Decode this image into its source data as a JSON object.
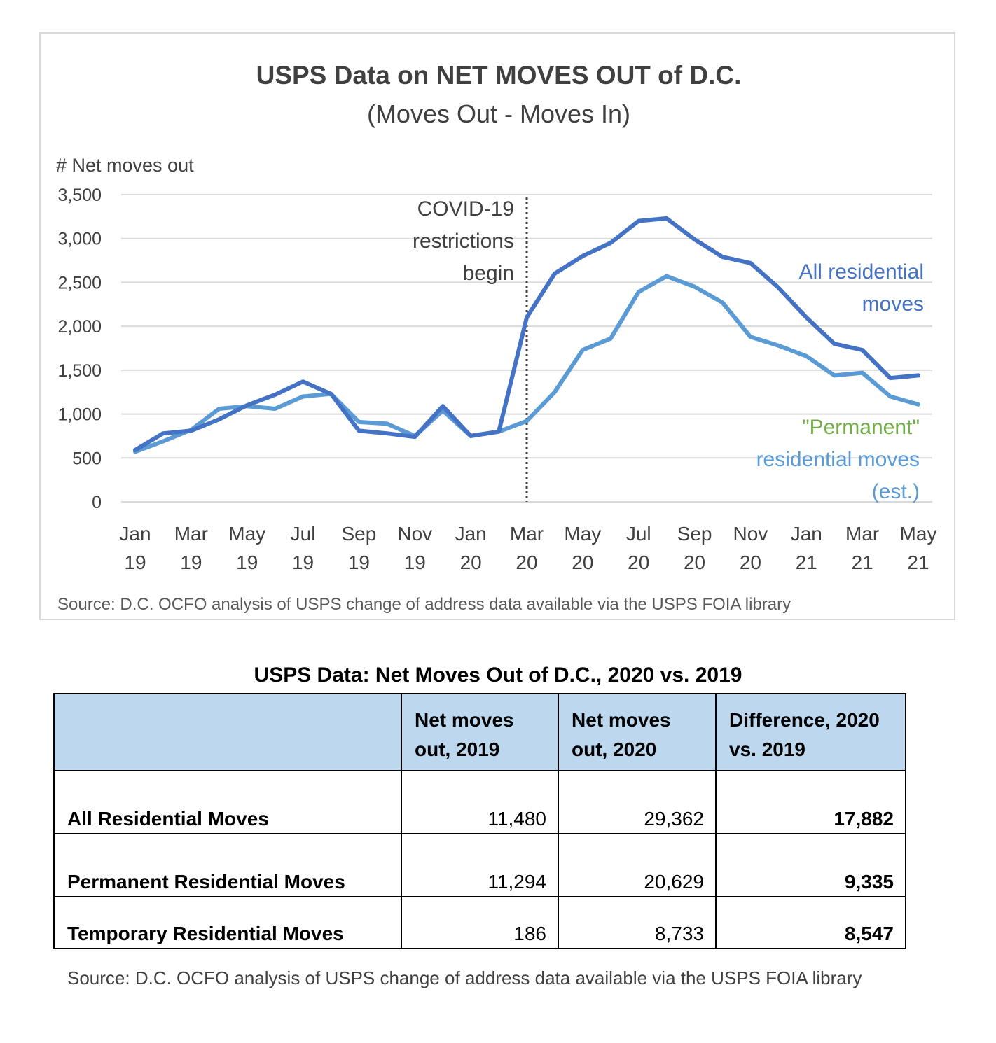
{
  "chart": {
    "title": "USPS Data on NET MOVES OUT of D.C.",
    "subtitle": "(Moves Out - Moves In)",
    "y_axis_title": "# Net moves out",
    "annotation": [
      "COVID-19",
      "restrictions",
      "begin"
    ],
    "source": "Source: D.C. OCFO analysis of USPS change of address data available via the USPS FOIA library",
    "label_all": [
      "All residential",
      "moves"
    ],
    "label_permanent": [
      "\"Permanent\"",
      "residential moves",
      "(est.)"
    ]
  },
  "chart_data": {
    "type": "line",
    "x": [
      "Jan 19",
      "Feb 19",
      "Mar 19",
      "Apr 19",
      "May 19",
      "Jun 19",
      "Jul 19",
      "Aug 19",
      "Sep 19",
      "Oct 19",
      "Nov 19",
      "Dec 19",
      "Jan 20",
      "Feb 20",
      "Mar 20",
      "Apr 20",
      "May 20",
      "Jun 20",
      "Jul 20",
      "Aug 20",
      "Sep 20",
      "Oct 20",
      "Nov 20",
      "Dec 20",
      "Jan 21",
      "Feb 21",
      "Mar 21",
      "Apr 21",
      "May 21"
    ],
    "tick_labels": [
      [
        "Jan",
        "19"
      ],
      [
        "Mar",
        "19"
      ],
      [
        "May",
        "19"
      ],
      [
        "Jul",
        "19"
      ],
      [
        "Sep",
        "19"
      ],
      [
        "Nov",
        "19"
      ],
      [
        "Jan",
        "20"
      ],
      [
        "Mar",
        "20"
      ],
      [
        "May",
        "20"
      ],
      [
        "Jul",
        "20"
      ],
      [
        "Sep",
        "20"
      ],
      [
        "Nov",
        "20"
      ],
      [
        "Jan",
        "21"
      ],
      [
        "Mar",
        "21"
      ],
      [
        "May",
        "21"
      ]
    ],
    "y_ticks": [
      "0",
      "500",
      "1,000",
      "1,500",
      "2,000",
      "2,500",
      "3,000",
      "3,500"
    ],
    "ylim": [
      0,
      3500
    ],
    "grid": true,
    "annotation_at": "Mar 20",
    "series": [
      {
        "name": "All residential moves",
        "color": "#4472c4",
        "values": [
          590,
          780,
          810,
          940,
          1100,
          1220,
          1370,
          1230,
          810,
          780,
          740,
          1090,
          750,
          800,
          2100,
          2600,
          2800,
          2950,
          3200,
          3230,
          2990,
          2790,
          2720,
          2440,
          2100,
          1800,
          1730,
          1410,
          1440
        ]
      },
      {
        "name": "\"Permanent\" residential moves (est.)",
        "color": "#5b9bd5",
        "values": [
          570,
          690,
          820,
          1060,
          1090,
          1060,
          1200,
          1230,
          910,
          890,
          750,
          1040,
          750,
          800,
          920,
          1250,
          1730,
          1860,
          2390,
          2570,
          2450,
          2270,
          1880,
          1780,
          1660,
          1440,
          1470,
          1200,
          1110
        ]
      }
    ],
    "colors": {
      "legend_permanent_quote": "#70ad47",
      "grid": "#d9d9d9",
      "annotation_line": "#404040"
    }
  },
  "table": {
    "title": "USPS Data: Net Moves Out of D.C., 2020 vs. 2019",
    "headers": [
      "",
      "Net moves out, 2019",
      "Net moves out, 2020",
      "Difference, 2020 vs. 2019"
    ],
    "rows": [
      {
        "label": "All Residential Moves",
        "v2019": "11,480",
        "v2020": "29,362",
        "diff": "17,882"
      },
      {
        "label": "Permanent Residential Moves",
        "v2019": "11,294",
        "v2020": "20,629",
        "diff": "9,335"
      },
      {
        "label": "Temporary Residential Moves",
        "v2019": "186",
        "v2020": "8,733",
        "diff": "8,547"
      }
    ],
    "source": "Source: D.C. OCFO analysis of USPS change of address data available via the USPS FOIA library",
    "header_bg": "#bdd7ee"
  }
}
